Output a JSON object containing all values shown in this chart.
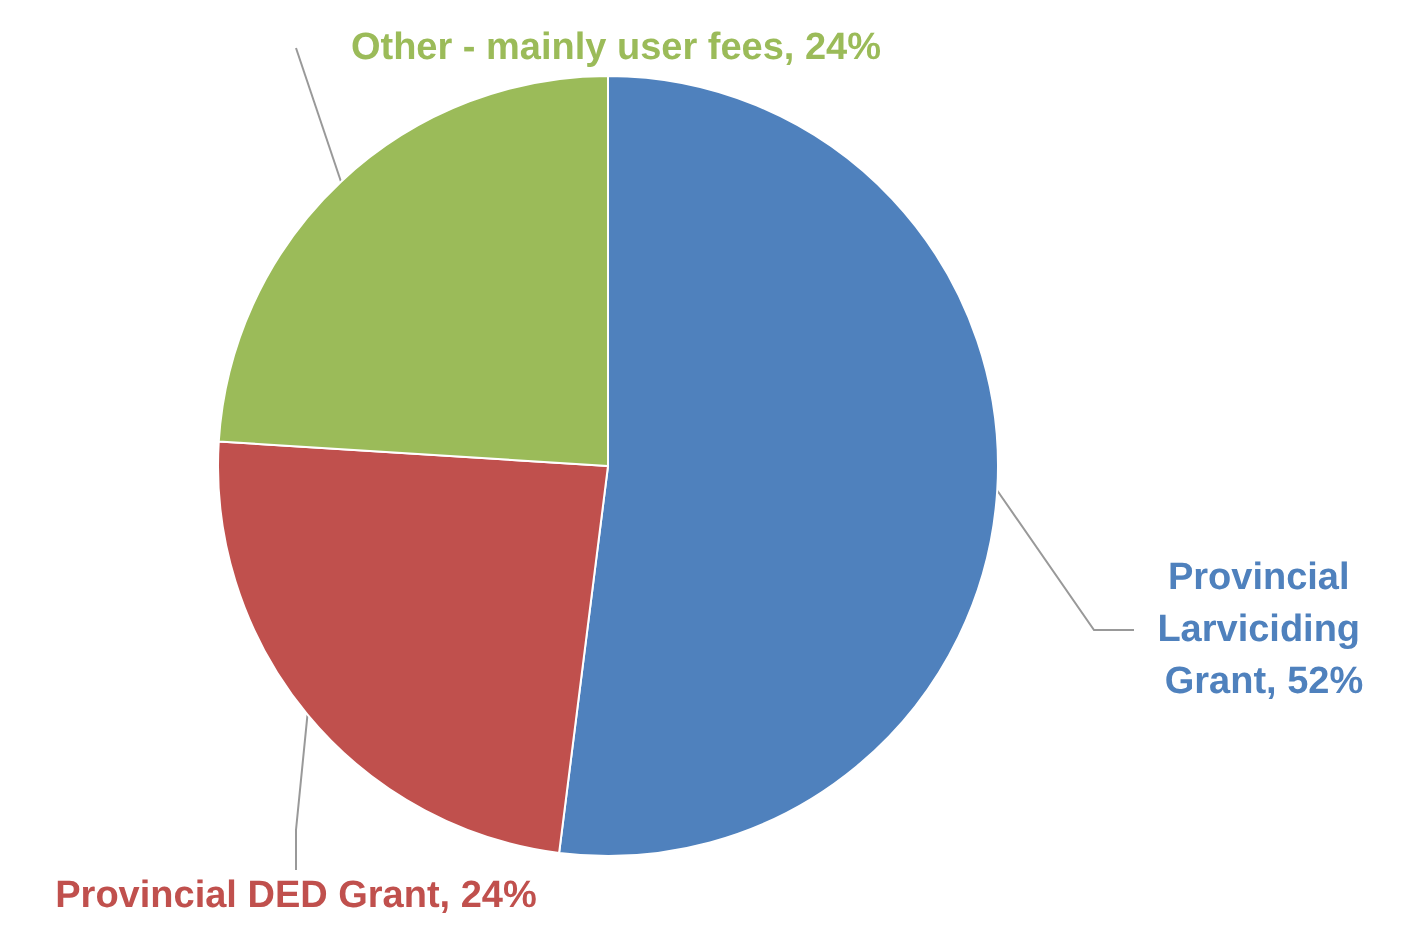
{
  "chart_data": {
    "type": "pie",
    "categories": [
      "Provincial Larviciding Grant",
      "Provincial DED Grant",
      "Other - mainly user fees"
    ],
    "values": [
      52,
      24,
      24
    ],
    "value_labels": [
      "52%",
      "24%",
      "24%"
    ],
    "colors": [
      "#4f81bd",
      "#c0504d",
      "#9bbb59"
    ],
    "legend": false
  }
}
